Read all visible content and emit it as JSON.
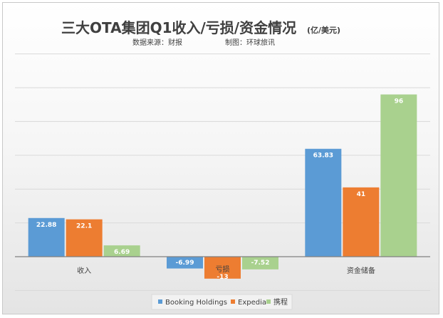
{
  "chart_data": {
    "type": "bar",
    "title": "三大OTA集团Q1收入/亏损/资金情况",
    "title_unit": "(亿/美元)",
    "source": "数据来源：财报",
    "producer": "制图：环球旅讯",
    "categories": [
      "收入",
      "亏损",
      "资金储备"
    ],
    "series": [
      {
        "name": "Booking Holdings",
        "values": [
          22.88,
          -6.99,
          63.83
        ],
        "labels": [
          "22.88",
          "-6.99",
          "63.83"
        ]
      },
      {
        "name": "Expedia",
        "values": [
          22.1,
          -13,
          41
        ],
        "labels": [
          "22.1",
          "-13",
          "41"
        ]
      },
      {
        "name": "携程",
        "values": [
          6.69,
          -7.52,
          96
        ],
        "labels": [
          "6.69",
          "-7.52",
          "96"
        ]
      }
    ],
    "colors": [
      "#5b9bd5",
      "#ed7d31",
      "#a9d18e"
    ],
    "ylim": [
      -20,
      120
    ],
    "grid_step": 20,
    "grid": true,
    "y_tick_labels": false,
    "legend": "bottom"
  }
}
